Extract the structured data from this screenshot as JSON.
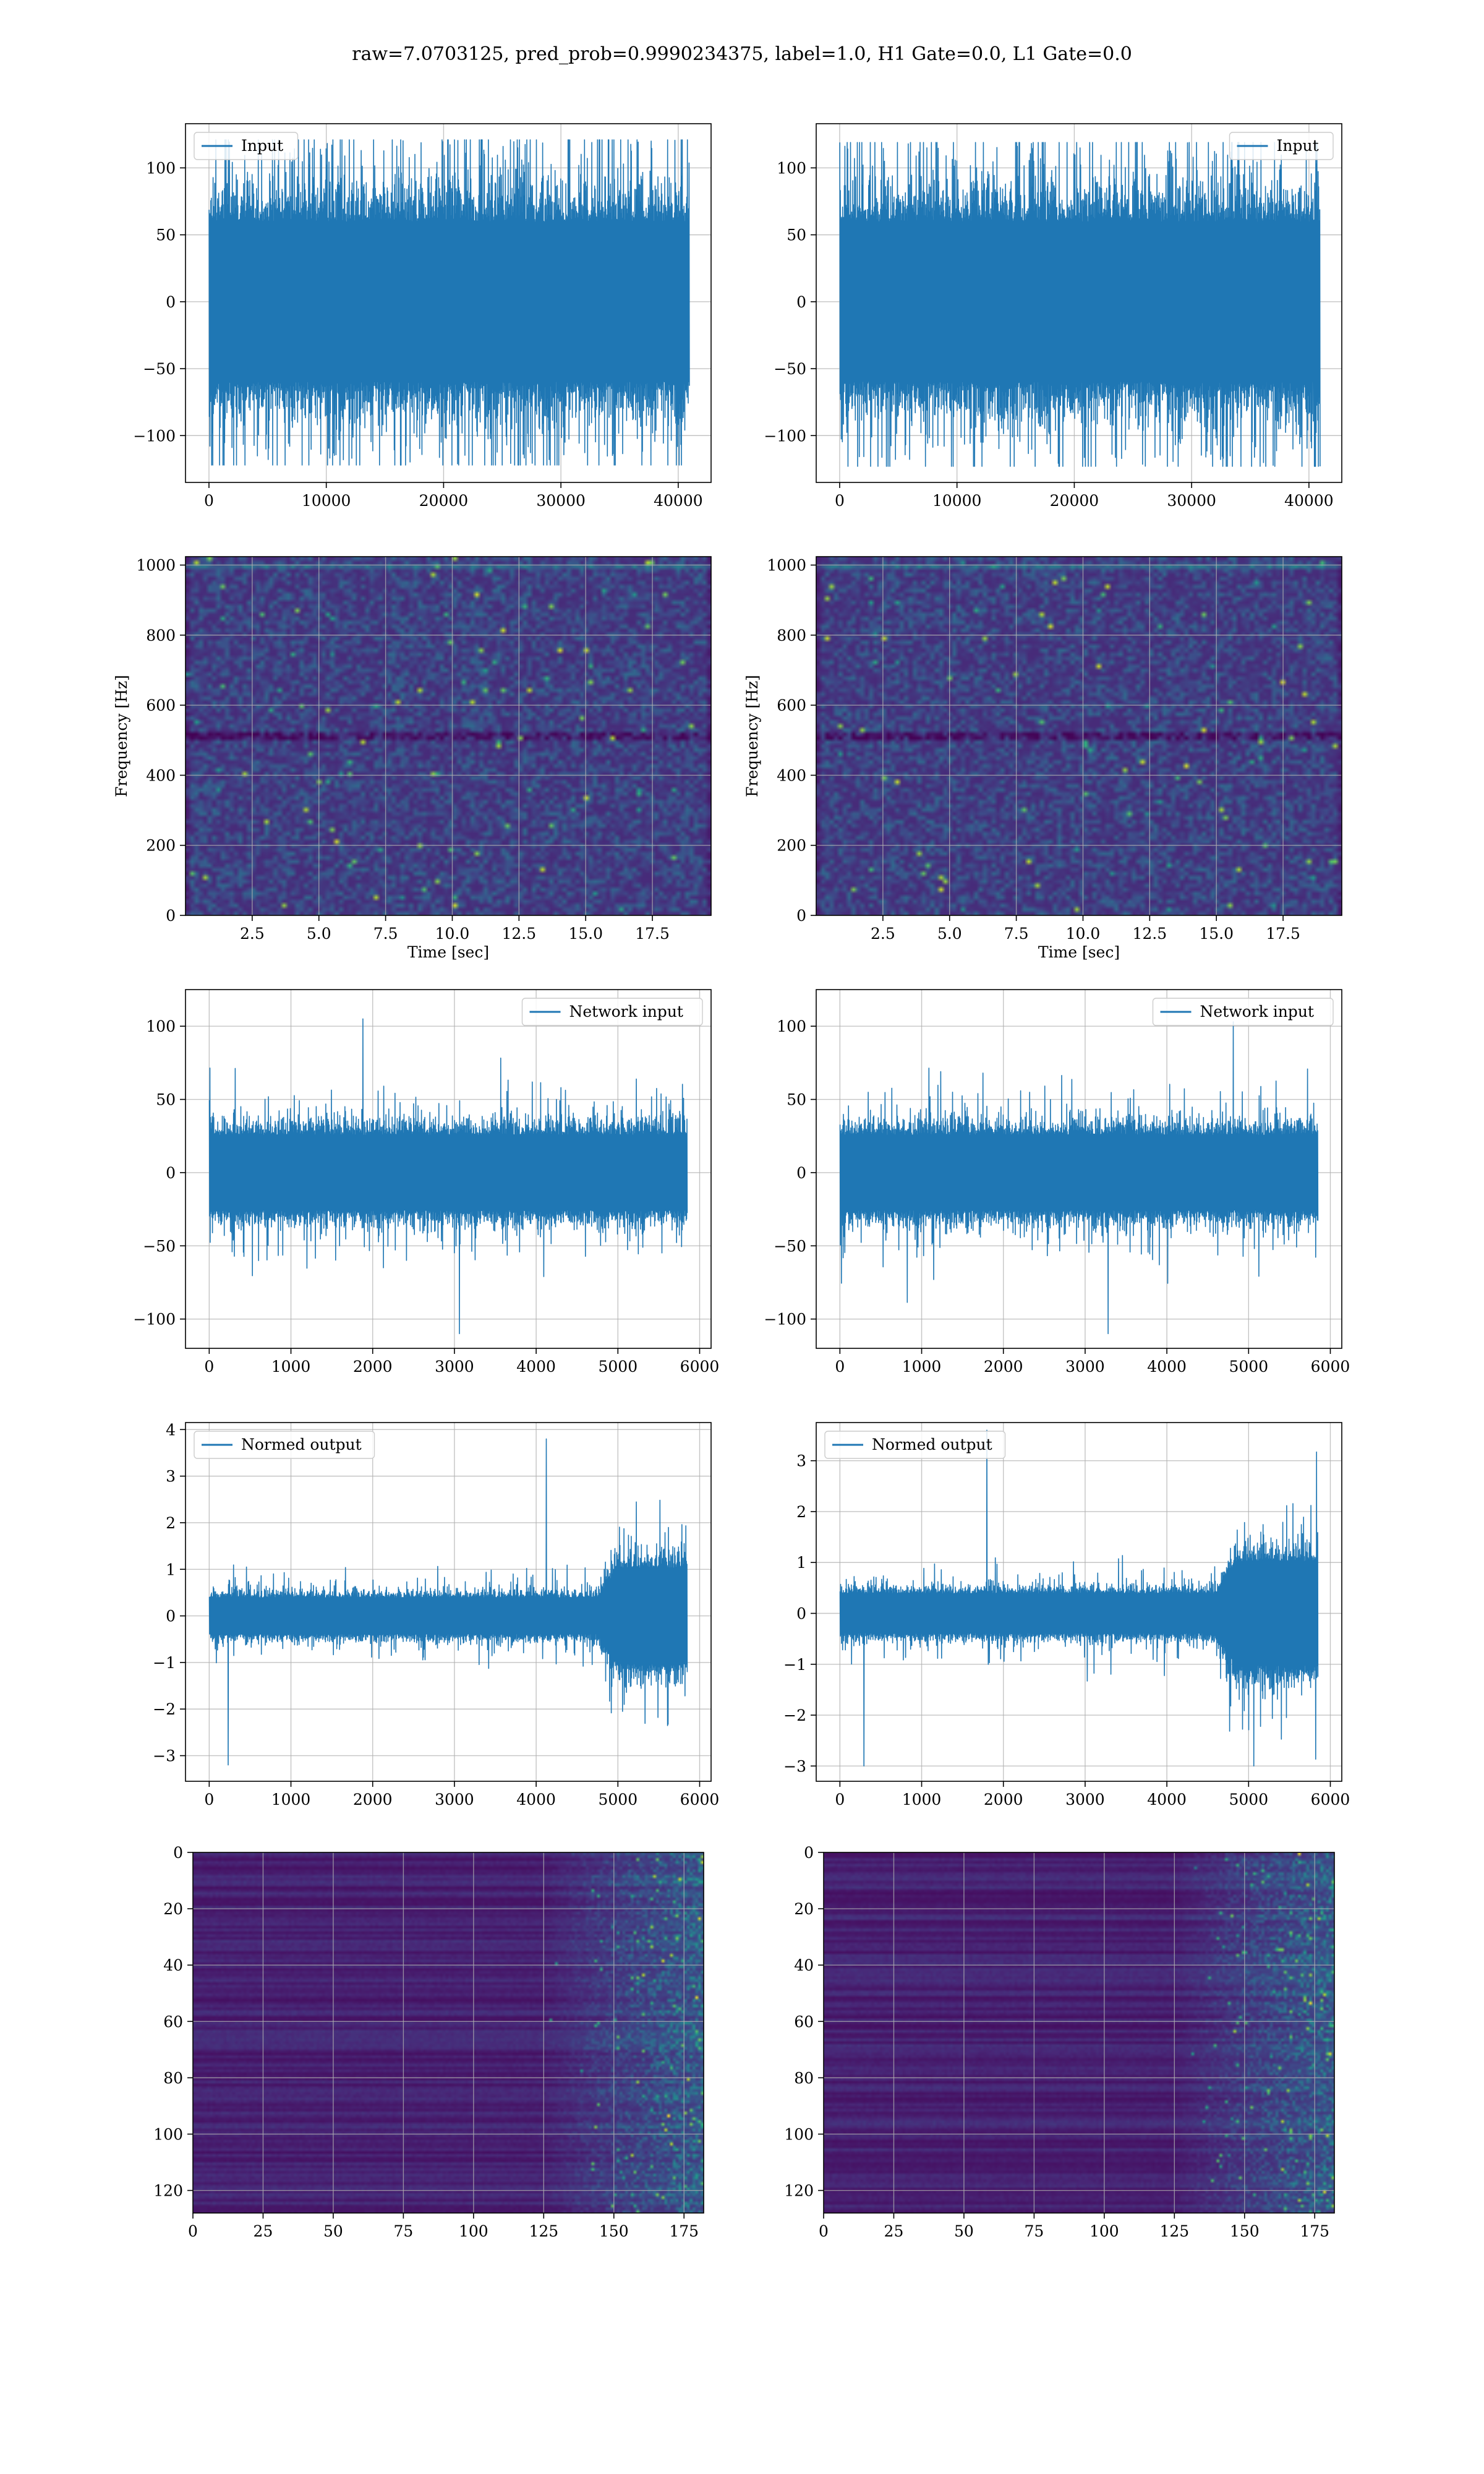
{
  "figure": {
    "title": "raw=7.0703125, pred_prob=0.9990234375, label=1.0, H1 Gate=0.0, L1 Gate=0.0"
  },
  "colors": {
    "line": "#1f77b4",
    "grid": "#b0b0b0",
    "viridis_low": "#440154",
    "viridis_mid": "#21918c",
    "viridis_high": "#fde725"
  },
  "chart_data": [
    {
      "id": "r1-left",
      "type": "line",
      "legend": "Input",
      "legend_loc": "upper-left",
      "xlim": [
        -2000,
        42800
      ],
      "ylim": [
        -135,
        133
      ],
      "xticks": [
        0,
        10000,
        20000,
        30000,
        40000
      ],
      "yticks": [
        -100,
        -50,
        0,
        50,
        100
      ],
      "signal": {
        "n_points": 40960,
        "envelope_abs": 70,
        "peak_max": 121,
        "peak_min": -122
      }
    },
    {
      "id": "r1-right",
      "type": "line",
      "legend": "Input",
      "legend_loc": "upper-right",
      "xlim": [
        -2000,
        42800
      ],
      "ylim": [
        -135,
        133
      ],
      "xticks": [
        0,
        10000,
        20000,
        30000,
        40000
      ],
      "yticks": [
        -100,
        -50,
        0,
        50,
        100
      ],
      "signal": {
        "n_points": 40960,
        "envelope_abs": 70,
        "peak_max": 119,
        "peak_min": -123
      }
    },
    {
      "id": "r2-left",
      "type": "heatmap",
      "kind": "spectrogram",
      "xlabel": "Time [sec]",
      "ylabel": "Frequency [Hz]",
      "xlim": [
        0,
        19.7
      ],
      "ylim": [
        0,
        1024
      ],
      "xticks": [
        2.5,
        5.0,
        7.5,
        10.0,
        12.5,
        15.0,
        17.5
      ],
      "yticks": [
        0,
        200,
        400,
        600,
        800,
        1000
      ],
      "colormap": "viridis"
    },
    {
      "id": "r2-right",
      "type": "heatmap",
      "kind": "spectrogram",
      "xlabel": "Time [sec]",
      "ylabel": "Frequency [Hz]",
      "xlim": [
        0,
        19.7
      ],
      "ylim": [
        0,
        1024
      ],
      "xticks": [
        2.5,
        5.0,
        7.5,
        10.0,
        12.5,
        15.0,
        17.5
      ],
      "yticks": [
        0,
        200,
        400,
        600,
        800,
        1000
      ],
      "colormap": "viridis"
    },
    {
      "id": "r3-left",
      "type": "line",
      "legend": "Network input",
      "legend_loc": "upper-right",
      "xlim": [
        -290,
        6140
      ],
      "ylim": [
        -120,
        125
      ],
      "xticks": [
        0,
        1000,
        2000,
        3000,
        4000,
        5000,
        6000
      ],
      "yticks": [
        -100,
        -50,
        0,
        50,
        100
      ],
      "signal": {
        "n_points": 5850,
        "envelope_abs": 30,
        "peak_max": 105,
        "peak_min": -110
      }
    },
    {
      "id": "r3-right",
      "type": "line",
      "legend": "Network input",
      "legend_loc": "upper-right",
      "xlim": [
        -290,
        6140
      ],
      "ylim": [
        -120,
        125
      ],
      "xticks": [
        0,
        1000,
        2000,
        3000,
        4000,
        5000,
        6000
      ],
      "yticks": [
        -100,
        -50,
        0,
        50,
        100
      ],
      "signal": {
        "n_points": 5850,
        "envelope_abs": 30,
        "peak_max": 103,
        "peak_min": -110
      }
    },
    {
      "id": "r4-left",
      "type": "line",
      "legend": "Normed output",
      "legend_loc": "upper-left",
      "xlim": [
        -290,
        6140
      ],
      "ylim": [
        -3.55,
        4.15
      ],
      "xticks": [
        0,
        1000,
        2000,
        3000,
        4000,
        5000,
        6000
      ],
      "yticks": [
        -3,
        -2,
        -1,
        0,
        1,
        2,
        3,
        4
      ],
      "signal": {
        "n_points": 5850,
        "envelope_abs": 0.45,
        "burst_start": 4750,
        "burst_envelope": 1.2,
        "peak_max": 3.8,
        "peak_min": -3.2
      }
    },
    {
      "id": "r4-right",
      "type": "line",
      "legend": "Normed output",
      "legend_loc": "upper-left",
      "xlim": [
        -290,
        6140
      ],
      "ylim": [
        -3.3,
        3.75
      ],
      "xticks": [
        0,
        1000,
        2000,
        3000,
        4000,
        5000,
        6000
      ],
      "yticks": [
        -3,
        -2,
        -1,
        0,
        1,
        2,
        3
      ],
      "signal": {
        "n_points": 5850,
        "envelope_abs": 0.45,
        "burst_start": 4600,
        "burst_envelope": 1.2,
        "peak_max": 3.6,
        "peak_min": -3.0
      }
    },
    {
      "id": "r5-left",
      "type": "heatmap",
      "kind": "feature-map",
      "xlim": [
        0,
        182
      ],
      "ylim": [
        128,
        0
      ],
      "xticks": [
        0,
        25,
        50,
        75,
        100,
        125,
        150,
        175
      ],
      "yticks": [
        0,
        20,
        40,
        60,
        80,
        100,
        120
      ],
      "colormap": "viridis",
      "active_from_x": 125
    },
    {
      "id": "r5-right",
      "type": "heatmap",
      "kind": "feature-map",
      "xlim": [
        0,
        182
      ],
      "ylim": [
        128,
        0
      ],
      "xticks": [
        0,
        25,
        50,
        75,
        100,
        125,
        150,
        175
      ],
      "yticks": [
        0,
        20,
        40,
        60,
        80,
        100,
        120
      ],
      "colormap": "viridis",
      "active_from_x": 125
    }
  ]
}
